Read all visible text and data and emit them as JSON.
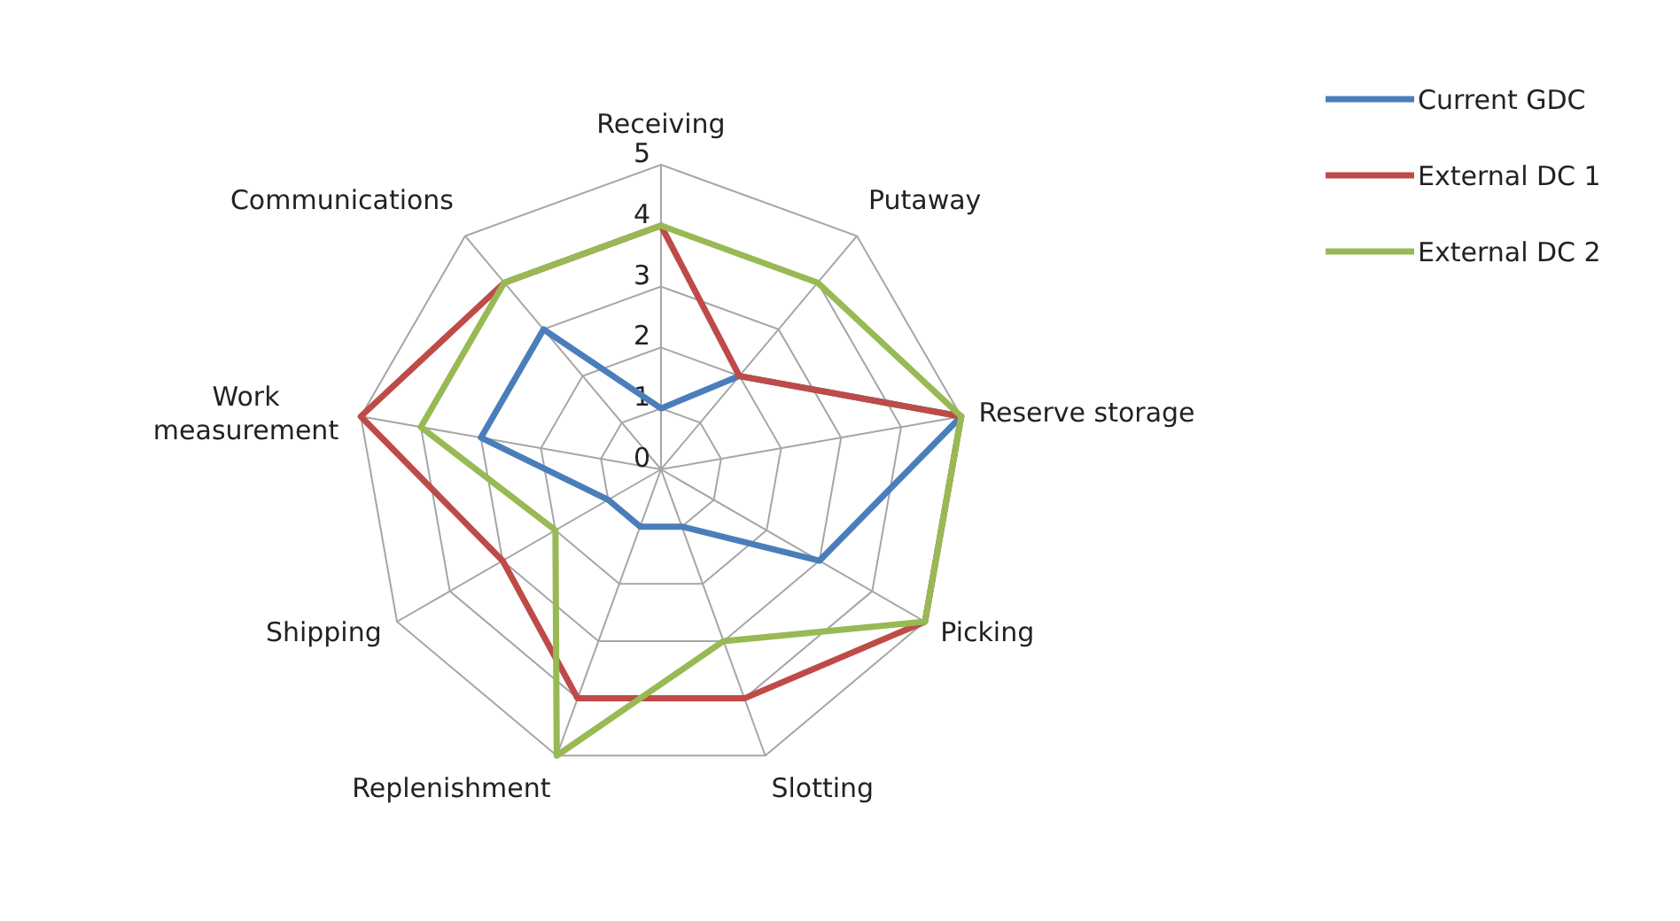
{
  "chart_data": {
    "type": "radar",
    "categories": [
      "Receiving",
      "Putaway",
      "Reserve storage",
      "Picking",
      "Slotting",
      "Replenishment",
      "Shipping",
      "Work\nmeasurement",
      "Communications"
    ],
    "series": [
      {
        "name": "Current GDC",
        "color": "#4a7ebb",
        "values": [
          1,
          2,
          5,
          3,
          1,
          1,
          1,
          3,
          3
        ]
      },
      {
        "name": "External DC 1",
        "color": "#be4b48",
        "values": [
          4,
          2,
          5,
          5,
          4,
          4,
          3,
          5,
          4
        ]
      },
      {
        "name": "External DC 2",
        "color": "#98b954",
        "values": [
          4,
          4,
          5,
          5,
          3,
          5,
          2,
          4,
          4
        ]
      }
    ],
    "ylim": [
      0,
      5
    ],
    "yticks": [
      0,
      1,
      2,
      3,
      4,
      5
    ],
    "grid": true,
    "legend": "top right",
    "marker": "none"
  }
}
